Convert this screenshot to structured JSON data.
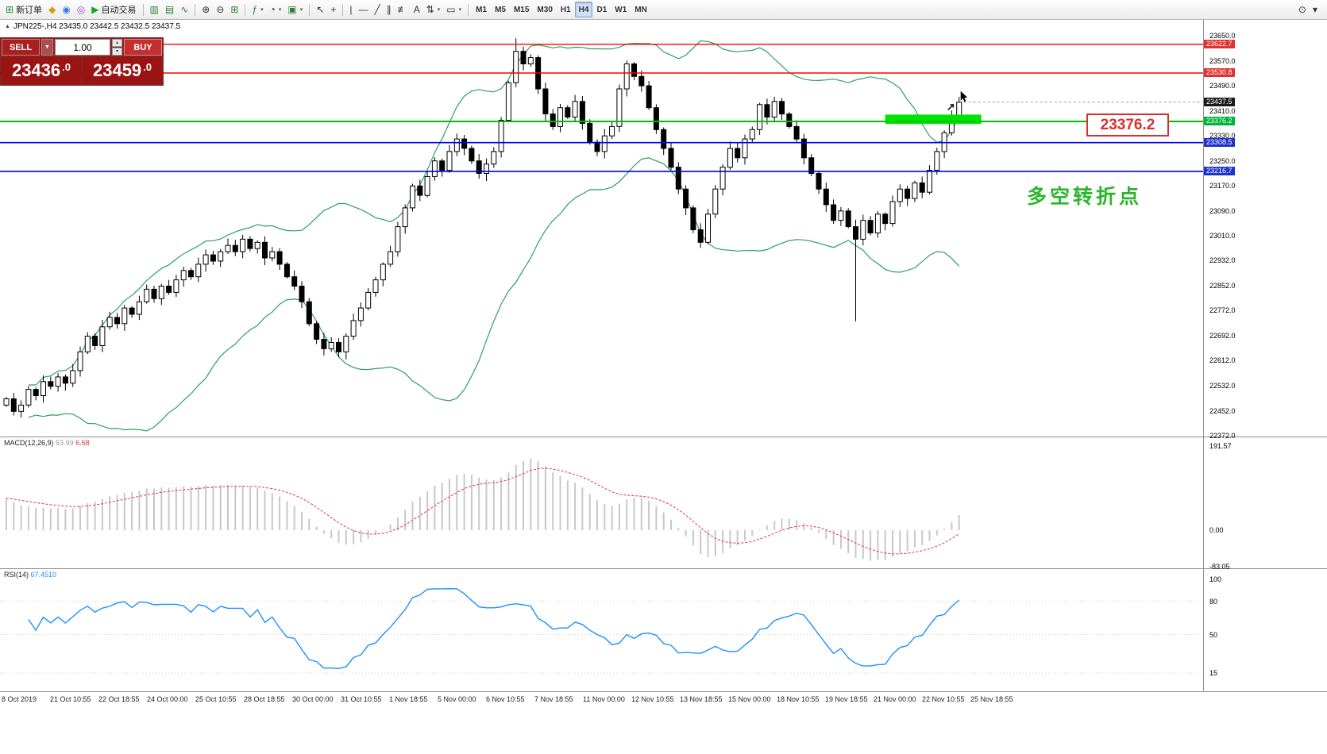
{
  "toolbar": {
    "caret_glyph": "▾",
    "groups": [
      {
        "items": [
          {
            "name": "new-order-button",
            "icon": "new-order-icon",
            "glyph": "⊞",
            "color": "#1a8f3c",
            "label": "新订单"
          },
          {
            "name": "open-chart-button",
            "icon": "chart-file-icon",
            "glyph": "◆",
            "color": "#d2a106",
            "label": ""
          },
          {
            "name": "profiles-button",
            "icon": "profiles-icon",
            "glyph": "◉",
            "color": "#2f7fd6",
            "label": ""
          },
          {
            "name": "refresh-button",
            "icon": "refresh-icon",
            "glyph": "◎",
            "color": "#8a4fd0",
            "label": ""
          },
          {
            "name": "auto-trading-button",
            "icon": "autotrade-play-icon",
            "glyph": "▶",
            "color": "#18a428",
            "label": "自动交易"
          }
        ]
      },
      {
        "items": [
          {
            "name": "bar-chart-button",
            "icon": "bar-chart-icon",
            "glyph": "▥",
            "color": "#2e7d32",
            "label": ""
          },
          {
            "name": "candlestick-chart-button",
            "icon": "candlestick-icon",
            "glyph": "▤",
            "color": "#2e7d32",
            "label": ""
          },
          {
            "name": "line-chart-button",
            "icon": "line-chart-icon",
            "glyph": "∿",
            "color": "#2e7d32",
            "label": ""
          }
        ]
      },
      {
        "items": [
          {
            "name": "zoom-in-button",
            "icon": "zoom-in-icon",
            "glyph": "⊕",
            "color": "#333333",
            "label": ""
          },
          {
            "name": "zoom-out-button",
            "icon": "zoom-out-icon",
            "glyph": "⊖",
            "color": "#333333",
            "label": ""
          },
          {
            "name": "tile-windows-button",
            "icon": "tile-windows-icon",
            "glyph": "⊞",
            "color": "#2e7d32",
            "label": ""
          }
        ]
      },
      {
        "items": [
          {
            "name": "indicators-button",
            "icon": "indicators-icon",
            "glyph": "ƒ",
            "color": "#2e7d32",
            "label": "",
            "caret": true
          },
          {
            "name": "periods-button",
            "icon": "clock-icon",
            "glyph": "◔",
            "color": "#333333",
            "label": "",
            "caret": true
          },
          {
            "name": "templates-button",
            "icon": "template-icon",
            "glyph": "▣",
            "color": "#2e7d32",
            "label": "",
            "caret": true
          }
        ]
      },
      {
        "items": [
          {
            "name": "cursor-button",
            "icon": "cursor-icon",
            "glyph": "↖",
            "color": "#333333",
            "label": ""
          },
          {
            "name": "crosshair-button",
            "icon": "crosshair-icon",
            "glyph": "+",
            "color": "#333333",
            "label": ""
          }
        ]
      },
      {
        "items": [
          {
            "name": "vertical-line-button",
            "icon": "vertical-line-icon",
            "glyph": "|",
            "color": "#333333",
            "label": ""
          },
          {
            "name": "horizontal-line-button",
            "icon": "horizontal-line-icon",
            "glyph": "—",
            "color": "#333333",
            "label": ""
          },
          {
            "name": "trendline-button",
            "icon": "trendline-icon",
            "glyph": "╱",
            "color": "#333333",
            "label": ""
          },
          {
            "name": "channel-button",
            "icon": "channel-icon",
            "glyph": "∥",
            "color": "#333333",
            "label": ""
          },
          {
            "name": "fibonacci-button",
            "icon": "fibonacci-icon",
            "glyph": "≢",
            "color": "#333333",
            "label": ""
          },
          {
            "name": "text-button",
            "icon": "text-icon",
            "glyph": "A",
            "color": "#333333",
            "label": ""
          },
          {
            "name": "arrows-button",
            "icon": "arrow-tools-icon",
            "glyph": "⇅",
            "color": "#333333",
            "label": "",
            "caret": true
          },
          {
            "name": "shapes-button",
            "icon": "shapes-icon",
            "glyph": "▭",
            "color": "#333333",
            "label": "",
            "caret": true
          }
        ]
      },
      {
        "items": [
          {
            "name": "tf-m1-button",
            "label": "M1"
          },
          {
            "name": "tf-m5-button",
            "label": "M5"
          },
          {
            "name": "tf-m15-button",
            "label": "M15"
          },
          {
            "name": "tf-m30-button",
            "label": "M30"
          },
          {
            "name": "tf-h1-button",
            "label": "H1"
          },
          {
            "name": "tf-h4-button",
            "label": "H4",
            "active": true
          },
          {
            "name": "tf-d1-button",
            "label": "D1"
          },
          {
            "name": "tf-w1-button",
            "label": "W1"
          },
          {
            "name": "tf-mn-button",
            "label": "MN"
          }
        ]
      }
    ],
    "right_items": [
      {
        "name": "search-button",
        "icon": "search-icon",
        "glyph": "⊙",
        "color": "#333333",
        "label": ""
      },
      {
        "name": "more-button",
        "icon": "chevron-down-icon",
        "glyph": "▾",
        "color": "#333333",
        "label": ""
      }
    ]
  },
  "chart_header": {
    "collapse_glyph": "▲",
    "title": "JPN225-,H4 23435.0 23442.5 23432.5 23437.5"
  },
  "trade_panel": {
    "sell_label": "SELL",
    "buy_label": "BUY",
    "lot_value": "1.00",
    "caret_glyph": "▼",
    "step_up_glyph": "▴",
    "step_down_glyph": "▾",
    "sell_price_main": "23436",
    "sell_price_frac": ".0",
    "buy_price_main": "23459",
    "buy_price_frac": ".0"
  },
  "annotations": {
    "price_callout": "23376.2",
    "turning_point_text": "多空转折点",
    "trend_arrow_glyph": "↗"
  },
  "price_axis": {
    "ticks": [
      23650.0,
      23570.0,
      23490.0,
      23410.0,
      23330.0,
      23250.0,
      23170.0,
      23090.0,
      23010.0,
      22932.0,
      22852.0,
      22772.0,
      22692.0,
      22612.0,
      22532.0,
      22452.0,
      22372.0
    ],
    "tags": [
      {
        "label": "23622.7",
        "price": 23622.7,
        "bg": "#e03232"
      },
      {
        "label": "23530.8",
        "price": 23530.8,
        "bg": "#e03232"
      },
      {
        "label": "23437.5",
        "price": 23437.5,
        "bg": "#1a1a1a"
      },
      {
        "label": "23376.2",
        "price": 23376.2,
        "bg": "#00b33c"
      },
      {
        "label": "23308.5",
        "price": 23308.5,
        "bg": "#2233cc"
      },
      {
        "label": "23216.7",
        "price": 23216.7,
        "bg": "#2233cc"
      }
    ]
  },
  "macd_panel": {
    "name_label": "MACD(12,26,9)",
    "main_value": "53.99",
    "signal_value": "6.58",
    "axis_labels": [
      {
        "label": "191.57",
        "value": 191.57
      },
      {
        "label": "0.00",
        "value": 0
      },
      {
        "label": "-83.05",
        "value": -83.05
      }
    ]
  },
  "rsi_panel": {
    "name_label": "RSI(14)",
    "value": "67.4510",
    "axis_labels": [
      {
        "label": "100",
        "value": 100
      },
      {
        "label": "80",
        "value": 80
      },
      {
        "label": "50",
        "value": 50
      },
      {
        "label": "15",
        "value": 15
      }
    ],
    "levels": [
      80,
      50,
      15
    ]
  },
  "time_axis": {
    "labels": [
      "8 Oct 2019",
      "21 Oct 10:55",
      "22 Oct 18:55",
      "24 Oct 00:00",
      "25 Oct 10:55",
      "28 Oct 18:55",
      "30 Oct 00:00",
      "31 Oct 10:55",
      "1 Nov 18:55",
      "5 Nov 00:00",
      "6 Nov 10:55",
      "7 Nov 18:55",
      "11 Nov 00:00",
      "12 Nov 10:55",
      "13 Nov 18:55",
      "15 Nov 00:00",
      "18 Nov 10:55",
      "19 Nov 18:55",
      "21 Nov 00:00",
      "22 Nov 10:55",
      "25 Nov 18:55"
    ]
  },
  "chart_data": {
    "type": "candlestick",
    "symbol": "JPN225-",
    "timeframe": "H4",
    "ylim": [
      22372,
      23650
    ],
    "closes": [
      22490,
      22450,
      22470,
      22520,
      22500,
      22545,
      22530,
      22560,
      22540,
      22580,
      22640,
      22690,
      22660,
      22720,
      22750,
      22730,
      22780,
      22760,
      22800,
      22840,
      22810,
      22850,
      22830,
      22870,
      22900,
      22880,
      22920,
      22950,
      22930,
      22960,
      22980,
      22960,
      23000,
      22970,
      22990,
      22940,
      22960,
      22920,
      22880,
      22850,
      22800,
      22730,
      22680,
      22650,
      22670,
      22640,
      22690,
      22740,
      22780,
      22830,
      22870,
      22920,
      22960,
      23040,
      23100,
      23170,
      23140,
      23200,
      23250,
      23220,
      23280,
      23320,
      23290,
      23250,
      23210,
      23240,
      23280,
      23380,
      23500,
      23600,
      23560,
      23580,
      23480,
      23400,
      23360,
      23420,
      23390,
      23440,
      23370,
      23310,
      23280,
      23330,
      23360,
      23480,
      23560,
      23520,
      23490,
      23420,
      23350,
      23290,
      23230,
      23160,
      23100,
      23030,
      22990,
      23080,
      23160,
      23230,
      23290,
      23260,
      23320,
      23350,
      23430,
      23390,
      23440,
      23400,
      23360,
      23320,
      23260,
      23210,
      23160,
      23110,
      23060,
      23090,
      23040,
      23000,
      23060,
      23020,
      23080,
      23050,
      23120,
      23160,
      23130,
      23180,
      23150,
      23220,
      23280,
      23340,
      23390,
      23437.5
    ],
    "wick_overrides": {
      "69": {
        "high": 23642
      },
      "115": {
        "low": 22738
      }
    },
    "bollinger": {
      "period": 20,
      "deviation": 2,
      "color": "#2e9e64"
    },
    "hlines": [
      {
        "price": 23622.7,
        "color": "#ff0000",
        "width": 1.4
      },
      {
        "price": 23530.8,
        "color": "#ff0000",
        "width": 1.4
      },
      {
        "price": 23376.2,
        "color": "#00c000",
        "width": 2
      },
      {
        "price": 23308.5,
        "color": "#0000ee",
        "width": 1.6
      },
      {
        "price": 23216.7,
        "color": "#0000ee",
        "width": 1.6
      }
    ],
    "current_price": 23437.5,
    "green_zone": {
      "start_index": 119,
      "end_index": 132,
      "price_top": 23398,
      "price_bottom": 23368,
      "color": "#00e400"
    },
    "macd": {
      "fast": 12,
      "slow": 26,
      "signal": 9,
      "bar_color": "#c8c8c8",
      "signal_color": "#ee3333",
      "ylim": [
        -83.05,
        191.57
      ]
    },
    "rsi": {
      "period": 14,
      "color": "#1e90ff",
      "ylim": [
        0,
        105
      ]
    }
  }
}
